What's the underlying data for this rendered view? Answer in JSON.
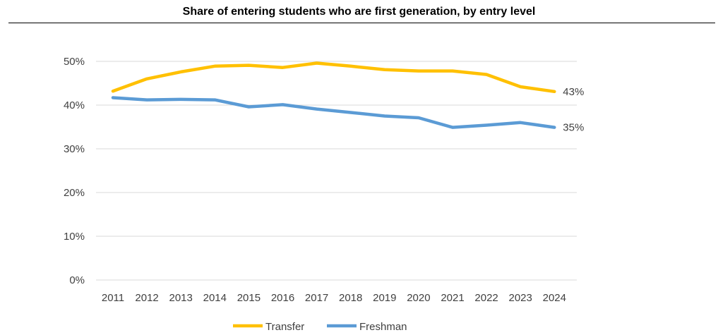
{
  "chart_data": {
    "type": "line",
    "title": "Share of entering students who are first generation, by entry level",
    "xlabel": "",
    "ylabel": "",
    "categories": [
      "2011",
      "2012",
      "2013",
      "2014",
      "2015",
      "2016",
      "2017",
      "2018",
      "2019",
      "2020",
      "2021",
      "2022",
      "2023",
      "2024"
    ],
    "ylim": [
      0,
      50
    ],
    "yticks": [
      "0%",
      "10%",
      "20%",
      "30%",
      "40%",
      "50%"
    ],
    "grid": true,
    "legend_position": "bottom",
    "series": [
      {
        "name": "Transfer",
        "color": "#FFC000",
        "values": [
          43.2,
          46.0,
          47.6,
          48.9,
          49.1,
          48.6,
          49.6,
          48.9,
          48.1,
          47.8,
          47.8,
          47.0,
          44.2,
          43.1
        ],
        "end_label": "43%"
      },
      {
        "name": "Freshman",
        "color": "#5B9BD5",
        "values": [
          41.7,
          41.2,
          41.3,
          41.2,
          39.6,
          40.1,
          39.1,
          38.3,
          37.5,
          37.1,
          34.9,
          35.4,
          36.0,
          34.9
        ],
        "end_label": "35%"
      }
    ]
  }
}
